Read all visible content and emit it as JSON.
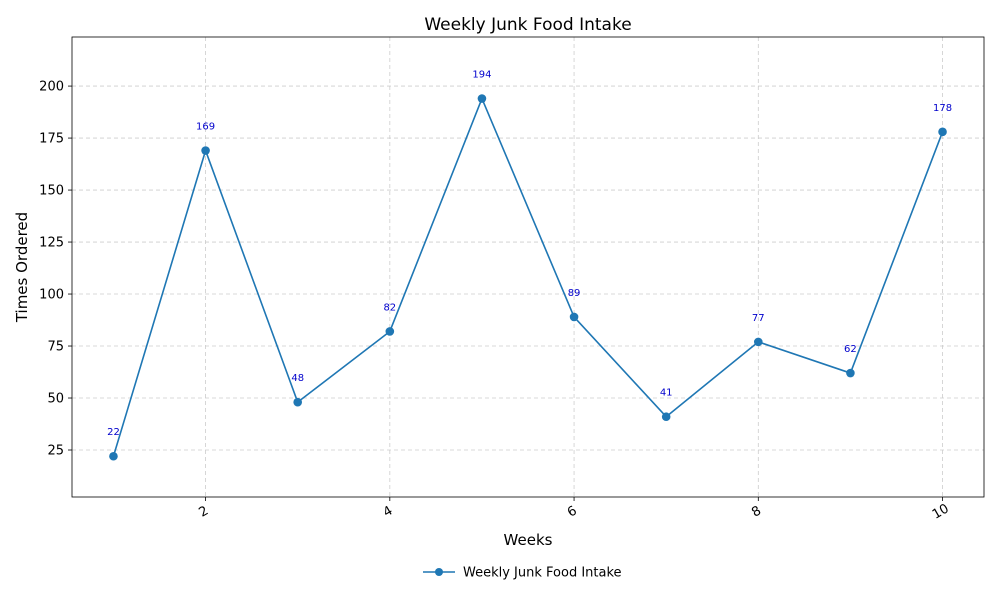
{
  "chart_data": {
    "type": "line",
    "title": "Weekly Junk Food Intake",
    "xlabel": "Weeks",
    "ylabel": "Times Ordered",
    "xlim": [
      0.55,
      10.45
    ],
    "ylim": [
      2.4,
      223.6
    ],
    "xticks": [
      2,
      4,
      6,
      8,
      10
    ],
    "yticks": [
      25,
      50,
      75,
      100,
      125,
      150,
      175,
      200
    ],
    "grid": true,
    "legend_position": "bottom-center",
    "series": [
      {
        "name": "Weekly Junk Food Intake",
        "color": "#1f77b4",
        "label_color": "#0000cc",
        "x": [
          1,
          2,
          3,
          4,
          5,
          6,
          7,
          8,
          9,
          10
        ],
        "y": [
          22,
          169,
          48,
          82,
          194,
          89,
          41,
          77,
          62,
          178
        ]
      }
    ]
  }
}
